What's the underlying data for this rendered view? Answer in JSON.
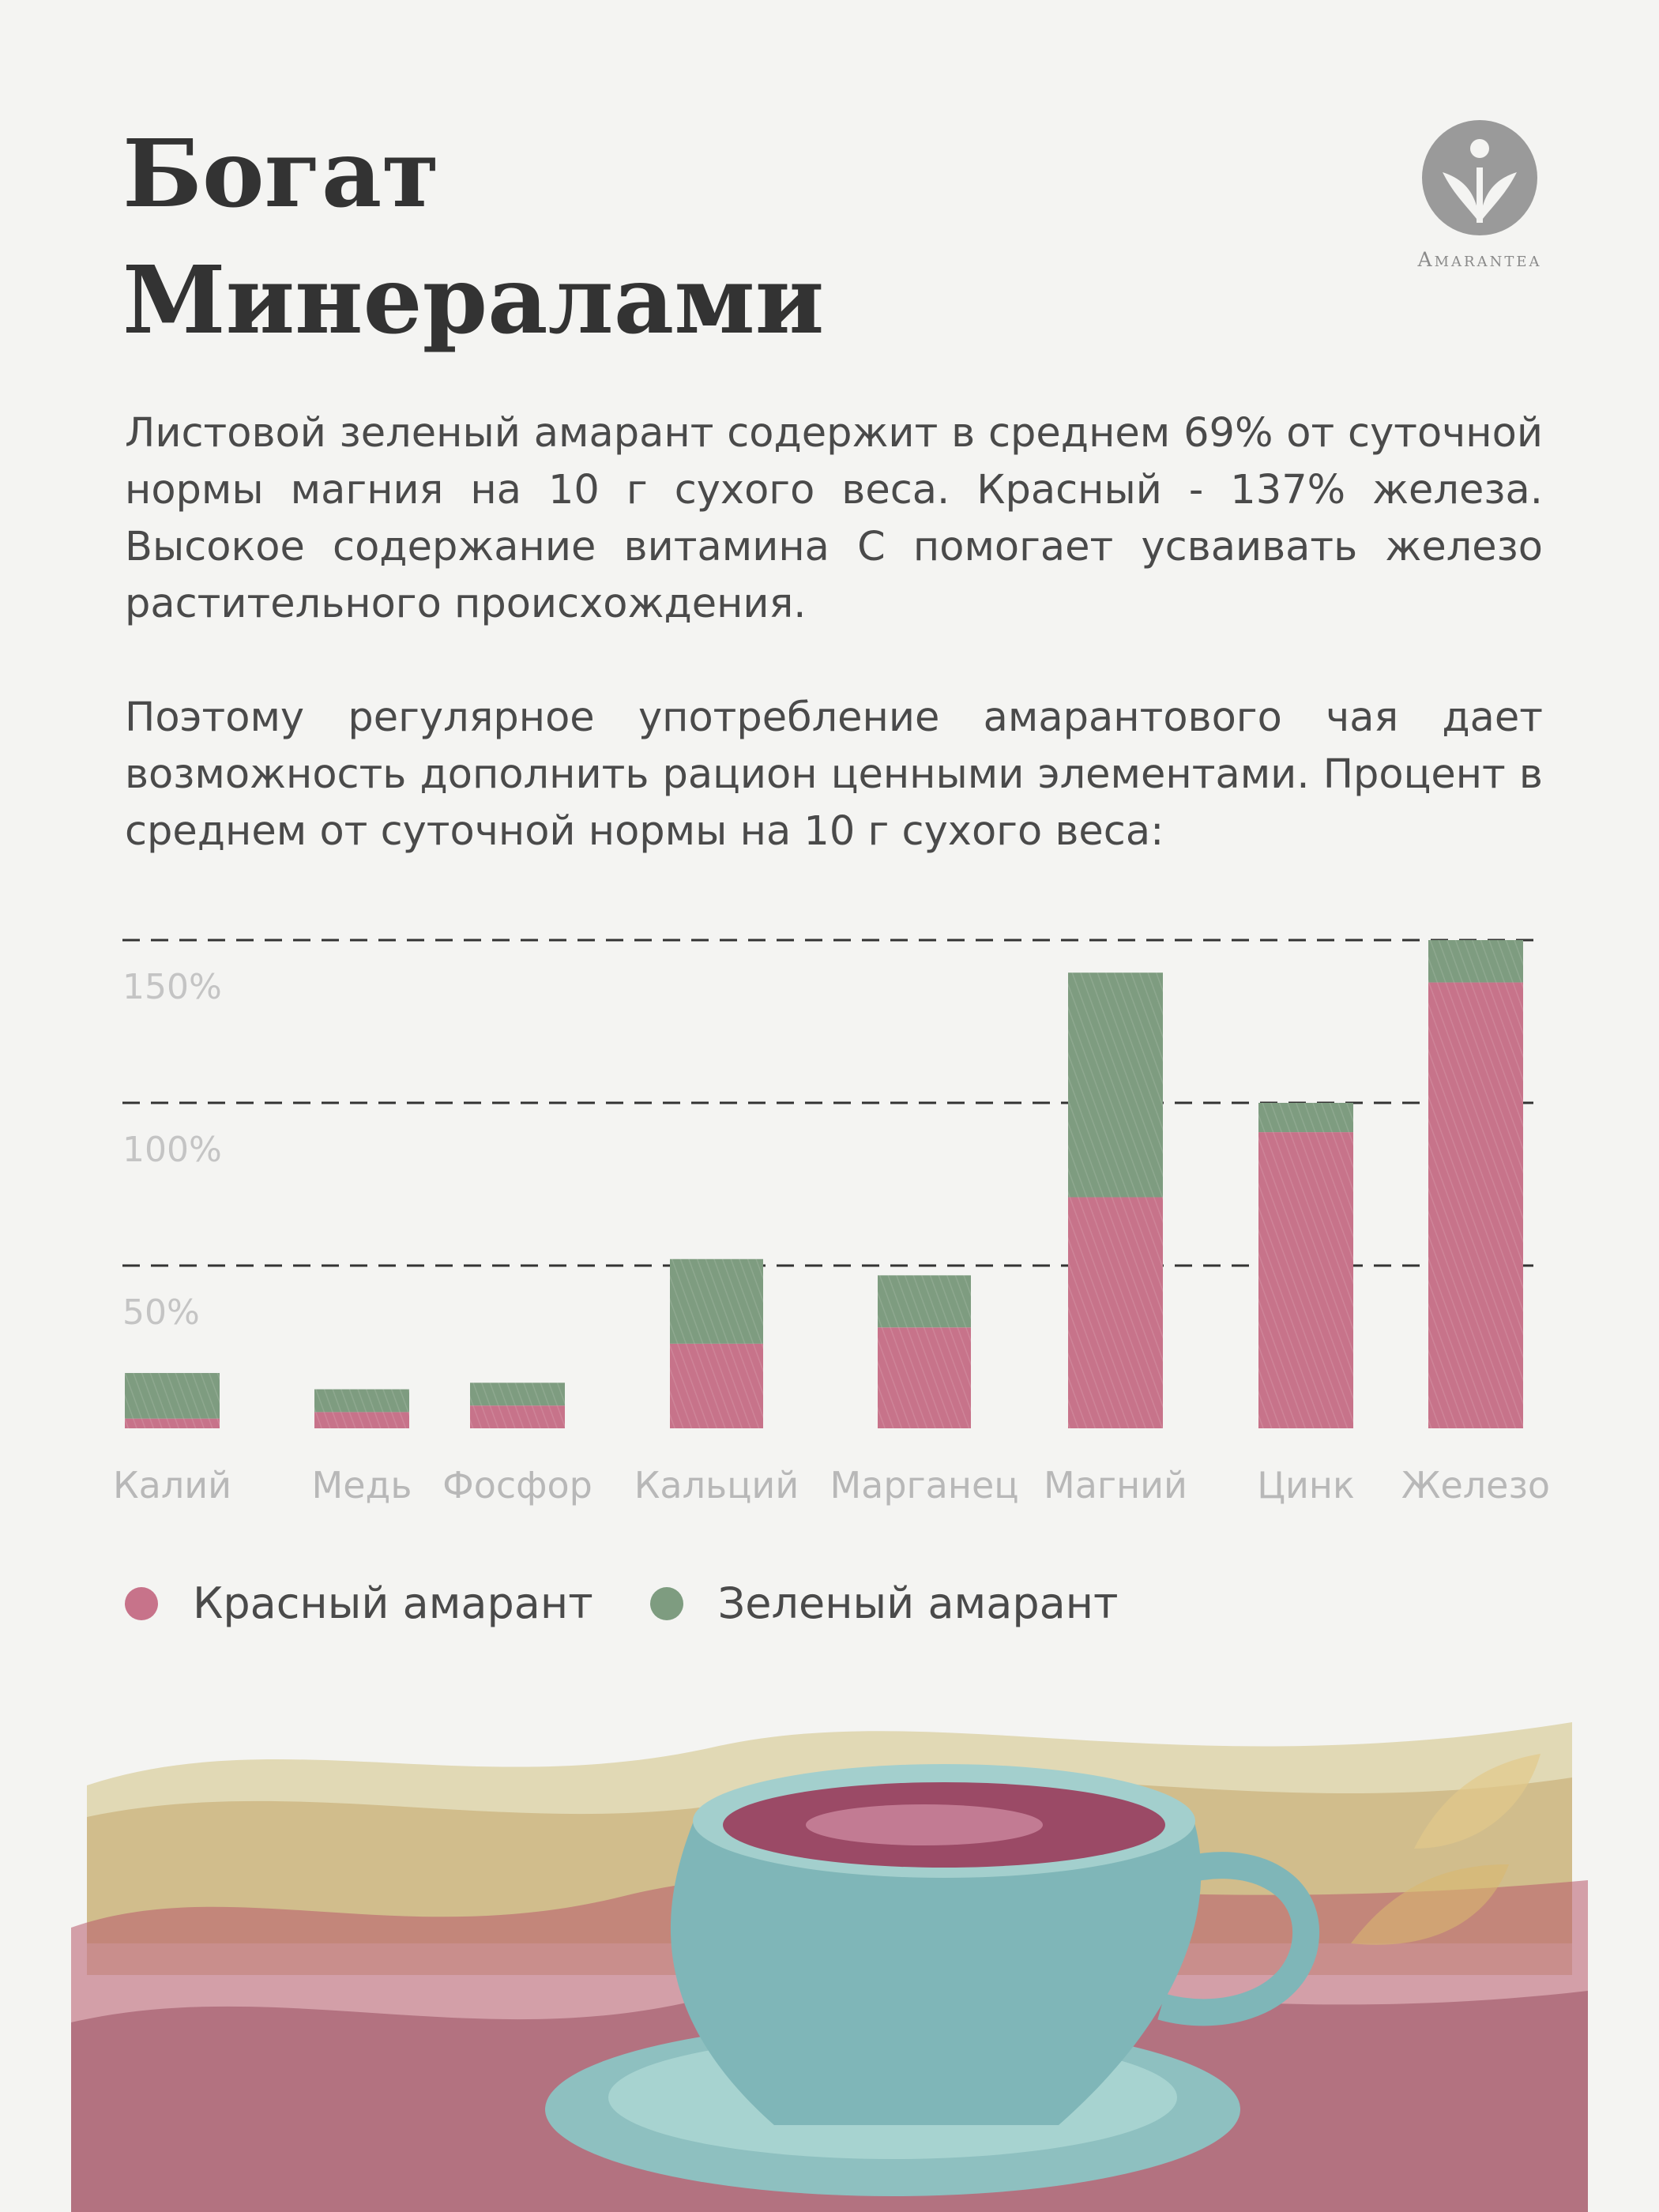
{
  "title": {
    "line1": "Богат",
    "line2": "Минералами"
  },
  "logo": {
    "text": "Amarantea",
    "icon": "sprout-icon"
  },
  "paragraphs": {
    "p1": "Листовой зеленый амарант содержит в среднем 69% от суточной нормы магния на 10 г сухого веса. Красный - 137% железа. Высокое содержание витамина С помогает усваивать железо растительного происхождения.",
    "p2": "Поэтому регулярное употребление амарантового чая дает возможность дополнить рацион ценными элементами. Процент в среднем от суточной нормы на 10 г сухого веса:"
  },
  "chart_data": {
    "type": "bar",
    "stacked": true,
    "categories": [
      "Калий",
      "Медь",
      "Фосфор",
      "Кальций",
      "Марганец",
      "Магний",
      "Цинк",
      "Железо"
    ],
    "series": [
      {
        "name": "Красный амарант",
        "color": "#c7738a",
        "values": [
          3,
          5,
          7,
          26,
          31,
          71,
          91,
          137
        ]
      },
      {
        "name": "Зеленый амарант",
        "color": "#7e9c80",
        "values": [
          14,
          7,
          7,
          26,
          16,
          69,
          9,
          13
        ]
      }
    ],
    "yticks": [
      {
        "value": 50,
        "label": "50%"
      },
      {
        "value": 100,
        "label": "100%"
      },
      {
        "value": 150,
        "label": "150%"
      }
    ],
    "ylim": [
      0,
      150
    ],
    "grid": true,
    "legend": "bottom-left"
  },
  "illustration": {
    "icon": "tea-cup-watercolor-icon"
  }
}
